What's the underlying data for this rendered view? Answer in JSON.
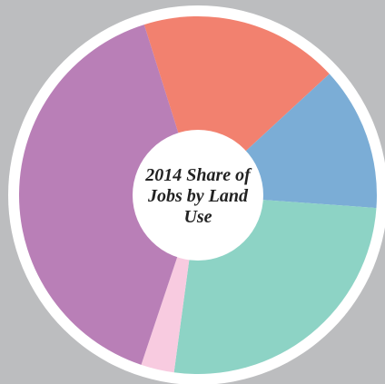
{
  "chart_data": {
    "type": "donut",
    "title": "2014 Share of Jobs by Land Use",
    "values": [
      18,
      13,
      26,
      3,
      40
    ],
    "colors": [
      "#f2816f",
      "#7badd6",
      "#8dd3c5",
      "#f8cbe0",
      "#b97fb7"
    ]
  }
}
